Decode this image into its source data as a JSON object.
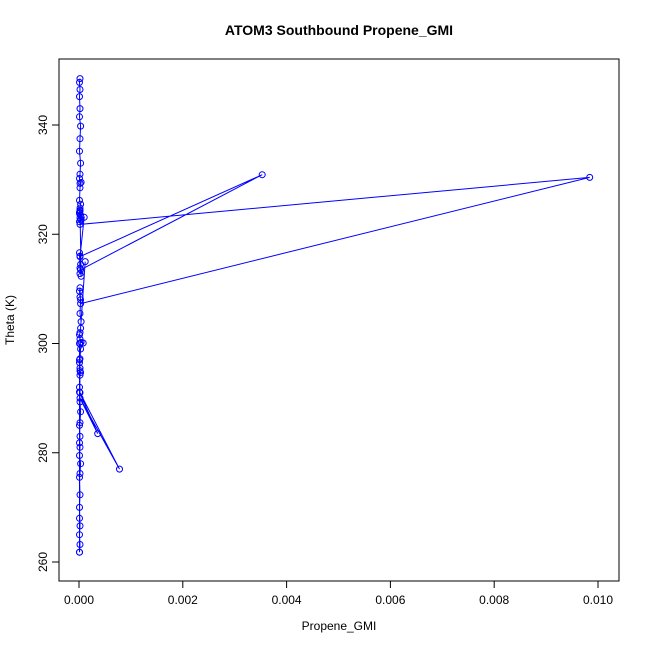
{
  "chart_data": {
    "type": "line",
    "title": "ATOM3 Southbound Propene_GMI",
    "xlabel": "Propene_GMI",
    "ylabel": "Theta (K)",
    "xlim": [
      0,
      0.01
    ],
    "ylim": [
      260,
      348
    ],
    "xticks": [
      0.0,
      0.002,
      0.004,
      0.006,
      0.008,
      0.01
    ],
    "xtick_labels": [
      "0.000",
      "0.002",
      "0.004",
      "0.006",
      "0.008",
      "0.010"
    ],
    "yticks": [
      260,
      280,
      300,
      320,
      340
    ],
    "ytick_labels": [
      "260",
      "280",
      "300",
      "320",
      "340"
    ],
    "grid": false,
    "series_color": "#0000ff",
    "marker": "open-circle",
    "series": [
      {
        "x": [
          2e-05,
          1e-05,
          2e-05,
          1e-05,
          2e-05,
          1e-05,
          3e-05,
          2e-05,
          1e-05,
          3e-05,
          2e-05,
          1e-05,
          2e-05,
          4e-05,
          2e-05,
          1e-05,
          3e-05,
          2e-05,
          1e-05,
          2e-05,
          3e-05,
          2e-05,
          1e-05,
          0.0001,
          2e-05,
          0.00353,
          3e-05,
          2e-05,
          1e-05,
          2e-05,
          3e-05,
          2e-05,
          4e-05,
          2e-05,
          1e-05,
          3e-05,
          2e-05,
          0.00984,
          3e-05,
          2e-05,
          1e-05,
          2e-05,
          3e-05,
          2e-05,
          4e-05,
          0.00012,
          3e-05,
          2e-05,
          1e-05,
          2e-05,
          4e-05,
          8e-05,
          3e-05,
          2e-05,
          1e-05,
          2e-05,
          3e-05,
          2e-05,
          1e-05,
          2e-05,
          3e-05,
          2e-05,
          1e-05,
          2e-05,
          1e-05,
          2e-05,
          1e-05,
          3e-05,
          2e-05,
          1e-05,
          2e-05,
          1e-05,
          2e-05,
          1e-05,
          2e-05,
          1e-05,
          2e-05,
          1e-05,
          2e-05,
          1e-05,
          0.00036,
          2e-05,
          0.00078,
          2e-05,
          1e-05,
          1e-05,
          1e-05
        ],
        "y": [
          348.5,
          347.8,
          346.5,
          345.2,
          343.0,
          341.5,
          339.8,
          337.5,
          335.2,
          333.0,
          331.0,
          330.2,
          329.3,
          329.5,
          328.5,
          326.2,
          325.5,
          324.8,
          324.0,
          324.2,
          323.5,
          323.0,
          322.3,
          323.1,
          315.9,
          330.9,
          313.5,
          312.8,
          316.6,
          316.0,
          314.5,
          313.8,
          312.3,
          324.4,
          323.8,
          322.6,
          321.8,
          330.4,
          307.3,
          310.2,
          309.6,
          308.5,
          308.0,
          305.5,
          304.0,
          315.0,
          302.8,
          302.0,
          301.6,
          300.8,
          300.2,
          300.1,
          299.0,
          297.2,
          296.5,
          295.0,
          294.7,
          294.2,
          292.0,
          289.3,
          287.5,
          285.5,
          285.0,
          283.0,
          281.8,
          281.0,
          279.5,
          278.0,
          276.2,
          275.5,
          272.3,
          270.0,
          266.6,
          265.0,
          263.2,
          261.8,
          300.0,
          297.0,
          295.5,
          291.1,
          283.5,
          290.0,
          277.0,
          291.0,
          300.0,
          268.0,
          261.8
        ]
      }
    ]
  }
}
